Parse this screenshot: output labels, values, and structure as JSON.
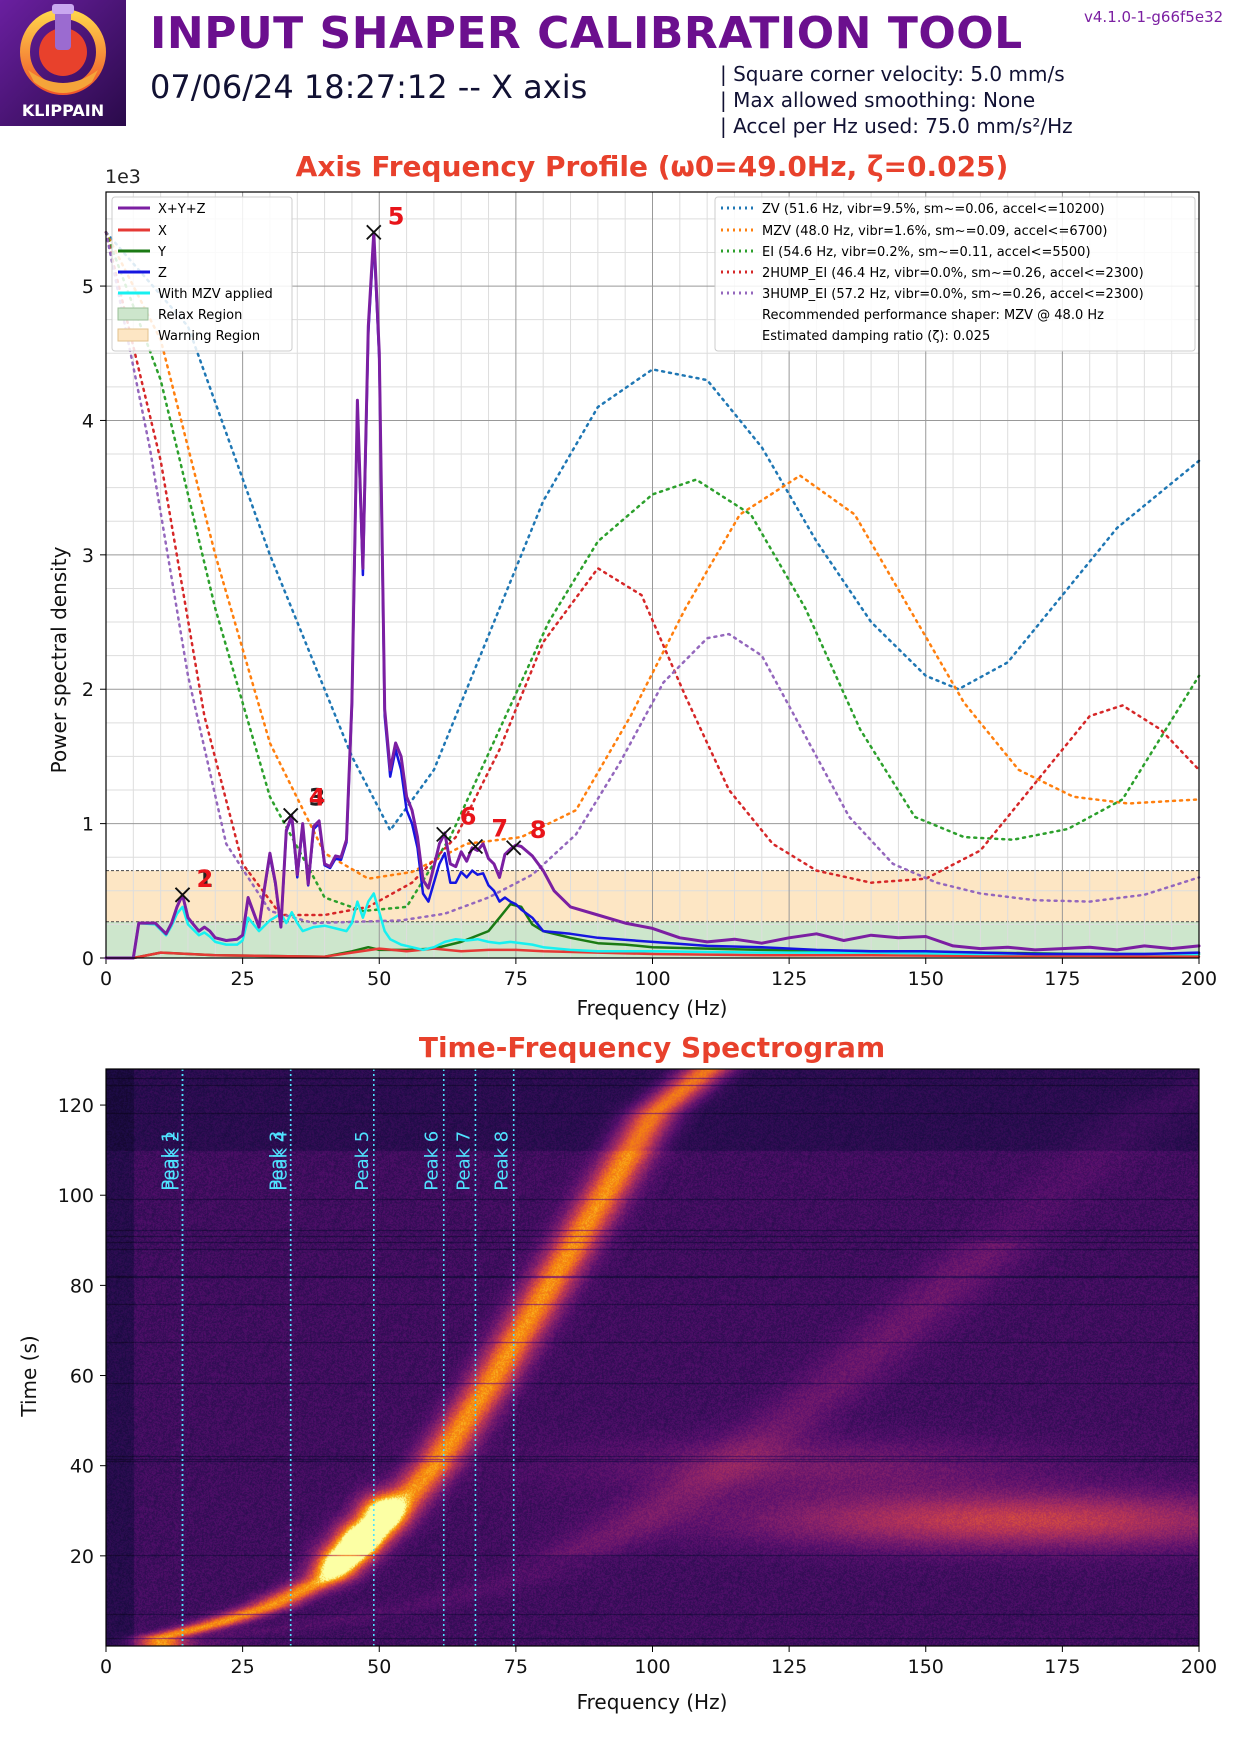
{
  "header": {
    "logo_text": "KLIPPAIN",
    "title": "INPUT SHAPER CALIBRATION TOOL",
    "version": "v4.1.0-1-g66f5e32",
    "subtitle": "07/06/24 18:27:12 -- X axis",
    "info": [
      "| Square corner velocity: 5.0 mm/s",
      "| Max allowed smoothing: None",
      "| Accel per Hz used: 75.0 mm/s²/Hz"
    ]
  },
  "colors": {
    "title_red": "#e8412c",
    "xyz": "#7b1fa2",
    "x": "#e53935",
    "y": "#1b7a14",
    "z": "#1515e0",
    "mzv_applied": "#17f0f0",
    "zv": "#1f77b4",
    "mzv": "#ff7f0e",
    "ei": "#2ca02c",
    "2hump_ei": "#d62728",
    "3hump_ei": "#9467bd",
    "relax_region": "#cde6cc",
    "warning_region": "#fde6c4",
    "peak_label": "#e8141a",
    "peak_label_overlap": "#222222"
  },
  "chart_data": [
    {
      "type": "line",
      "title": "Axis Frequency Profile (ω0=49.0Hz, ζ=0.025)",
      "xlabel": "Frequency (Hz)",
      "ylabel": "Power spectral density",
      "y_multiplier": "1e3",
      "xlim": [
        0,
        200
      ],
      "ylim": [
        0,
        5700
      ],
      "xticks": [
        0,
        25,
        50,
        75,
        100,
        125,
        150,
        175,
        200
      ],
      "yticks": [
        0,
        1000,
        2000,
        3000,
        4000,
        5000
      ],
      "ytick_labels": [
        "0",
        "1",
        "2",
        "3",
        "4",
        "5"
      ],
      "grid": true,
      "regions": [
        {
          "name": "Relax Region",
          "y": [
            0,
            270
          ]
        },
        {
          "name": "Warning Region",
          "y": [
            270,
            650
          ]
        }
      ],
      "legend_left": [
        "X+Y+Z",
        "X",
        "Y",
        "Z",
        "With MZV applied",
        "Relax Region",
        "Warning Region"
      ],
      "legend_right": [
        "ZV (51.6 Hz, vibr=9.5%, sm~=0.06, accel<=10200)",
        "MZV (48.0 Hz, vibr=1.6%, sm~=0.09, accel<=6700)",
        "EI (54.6 Hz, vibr=0.2%, sm~=0.11, accel<=5500)",
        "2HUMP_EI (46.4 Hz, vibr=0.0%, sm~=0.26, accel<=2300)",
        "3HUMP_EI (57.2 Hz, vibr=0.0%, sm~=0.26, accel<=2300)",
        "Recommended performance shaper: MZV @ 48.0 Hz",
        "Estimated damping ratio (ζ): 0.025"
      ],
      "series": [
        {
          "name": "X+Y+Z",
          "x": [
            0,
            5,
            6,
            9,
            11,
            12,
            13,
            14,
            15,
            16,
            17,
            18,
            19,
            20,
            22,
            24,
            25,
            26,
            28,
            29,
            30,
            31,
            32,
            33,
            34,
            35,
            36,
            37,
            38,
            39,
            40,
            41,
            42,
            43,
            44,
            45,
            46,
            47,
            48,
            49,
            50,
            51,
            52,
            53,
            54,
            55,
            56,
            57,
            58,
            59,
            60,
            61,
            62,
            63,
            64,
            65,
            66,
            67,
            68,
            69,
            70,
            71,
            72,
            73,
            74,
            75,
            76,
            78,
            80,
            82,
            85,
            90,
            95,
            100,
            105,
            110,
            115,
            120,
            125,
            130,
            135,
            140,
            145,
            150,
            155,
            160,
            165,
            170,
            175,
            180,
            185,
            190,
            195,
            200
          ],
          "y": [
            0,
            0,
            260,
            260,
            180,
            260,
            380,
            470,
            300,
            250,
            200,
            230,
            200,
            150,
            130,
            140,
            170,
            450,
            230,
            520,
            780,
            560,
            230,
            950,
            1060,
            620,
            1000,
            550,
            980,
            1020,
            700,
            680,
            760,
            750,
            880,
            1900,
            4150,
            2900,
            4700,
            5400,
            4500,
            1850,
            1400,
            1600,
            1500,
            1200,
            1100,
            900,
            580,
            520,
            680,
            850,
            930,
            700,
            680,
            790,
            720,
            820,
            800,
            850,
            740,
            700,
            600,
            770,
            810,
            840,
            830,
            760,
            650,
            500,
            380,
            320,
            260,
            220,
            150,
            120,
            140,
            110,
            150,
            180,
            130,
            170,
            150,
            160,
            90,
            70,
            80,
            60,
            70,
            80,
            60,
            90,
            70,
            90
          ]
        },
        {
          "name": "X",
          "x": [
            0,
            5,
            10,
            20,
            30,
            40,
            45,
            50,
            55,
            60,
            65,
            70,
            75,
            80,
            90,
            100,
            120,
            140,
            160,
            180,
            200
          ],
          "y": [
            0,
            0,
            40,
            20,
            15,
            10,
            40,
            70,
            50,
            70,
            50,
            60,
            60,
            50,
            40,
            30,
            20,
            20,
            15,
            15,
            10
          ]
        },
        {
          "name": "Y",
          "x": [
            0,
            5,
            10,
            20,
            30,
            40,
            45,
            48,
            50,
            55,
            60,
            65,
            70,
            72,
            74,
            76,
            78,
            80,
            85,
            90,
            95,
            100,
            110,
            120,
            140,
            160,
            180,
            200
          ],
          "y": [
            0,
            0,
            40,
            20,
            15,
            10,
            50,
            80,
            60,
            60,
            70,
            120,
            200,
            300,
            400,
            380,
            250,
            200,
            150,
            110,
            100,
            80,
            70,
            60,
            50,
            40,
            30,
            30
          ]
        },
        {
          "name": "Z",
          "x": [
            0,
            5,
            6,
            9,
            11,
            12,
            13,
            14,
            15,
            16,
            17,
            18,
            19,
            20,
            22,
            24,
            25,
            26,
            28,
            29,
            30,
            31,
            32,
            33,
            34,
            35,
            36,
            37,
            38,
            39,
            40,
            41,
            42,
            43,
            44,
            45,
            46,
            47,
            48,
            49,
            50,
            51,
            52,
            53,
            54,
            55,
            56,
            57,
            58,
            59,
            60,
            61,
            62,
            63,
            64,
            65,
            66,
            67,
            68,
            69,
            70,
            71,
            72,
            73,
            74,
            75,
            76,
            78,
            80,
            85,
            90,
            100,
            110,
            120,
            130,
            140,
            150,
            160,
            170,
            180,
            190,
            200
          ],
          "y": [
            0,
            0,
            260,
            260,
            180,
            260,
            380,
            470,
            300,
            250,
            200,
            230,
            200,
            150,
            130,
            140,
            170,
            440,
            230,
            520,
            760,
            550,
            230,
            940,
            1050,
            600,
            980,
            540,
            960,
            1000,
            690,
            670,
            740,
            730,
            860,
            1880,
            4100,
            2850,
            4650,
            5350,
            4450,
            1800,
            1350,
            1550,
            1400,
            1100,
            1000,
            820,
            480,
            420,
            560,
            700,
            780,
            560,
            560,
            640,
            600,
            650,
            620,
            630,
            540,
            500,
            420,
            450,
            420,
            400,
            360,
            300,
            200,
            180,
            150,
            120,
            90,
            80,
            60,
            50,
            50,
            40,
            30,
            30,
            30,
            40
          ]
        },
        {
          "name": "With MZV applied",
          "x": [
            0,
            5,
            6,
            9,
            11,
            12,
            13,
            14,
            15,
            16,
            17,
            18,
            19,
            20,
            22,
            24,
            25,
            26,
            28,
            30,
            32,
            33,
            34,
            35,
            36,
            38,
            40,
            42,
            44,
            45,
            46,
            47,
            48,
            49,
            50,
            51,
            52,
            54,
            56,
            58,
            60,
            62,
            64,
            66,
            68,
            70,
            72,
            74,
            76,
            78,
            80,
            85,
            90,
            100,
            120,
            140,
            160,
            180,
            200
          ],
          "y": [
            0,
            0,
            260,
            250,
            170,
            240,
            330,
            380,
            250,
            210,
            170,
            190,
            160,
            120,
            100,
            100,
            130,
            300,
            200,
            280,
            330,
            260,
            340,
            260,
            200,
            230,
            240,
            220,
            200,
            260,
            420,
            300,
            420,
            480,
            340,
            200,
            140,
            100,
            80,
            60,
            80,
            120,
            140,
            130,
            140,
            120,
            110,
            120,
            110,
            100,
            80,
            60,
            50,
            50,
            40,
            40,
            30,
            30,
            30
          ]
        },
        {
          "name": "ZV (51.6 Hz, vibr=9.5%, sm~=0.06, accel<=10200)",
          "x": [
            0,
            15,
            30,
            45,
            52,
            60,
            70,
            80,
            90,
            100,
            110,
            120,
            130,
            140,
            150,
            156,
            165,
            175,
            185,
            200
          ],
          "y": [
            5400,
            4700,
            3000,
            1500,
            950,
            1400,
            2400,
            3400,
            4100,
            4380,
            4300,
            3800,
            3100,
            2500,
            2100,
            2000,
            2200,
            2700,
            3200,
            3700
          ]
        },
        {
          "name": "MZV (48.0 Hz, vibr=1.6%, sm~=0.09, accel<=6700)",
          "x": [
            0,
            10,
            20,
            30,
            40,
            48,
            56,
            66,
            76,
            86,
            96,
            106,
            116,
            127,
            137,
            147,
            157,
            167,
            177,
            187,
            200
          ],
          "y": [
            5400,
            4600,
            3000,
            1600,
            780,
            590,
            640,
            850,
            900,
            1100,
            1800,
            2600,
            3300,
            3590,
            3300,
            2600,
            1900,
            1400,
            1200,
            1150,
            1180
          ]
        },
        {
          "name": "EI (54.6 Hz, vibr=0.2%, sm~=0.11, accel<=5500)",
          "x": [
            0,
            10,
            20,
            30,
            40,
            47,
            55,
            63,
            72,
            81,
            90,
            100,
            108,
            118,
            128,
            138,
            148,
            157,
            166,
            176,
            186,
            200
          ],
          "y": [
            5400,
            4300,
            2600,
            1200,
            450,
            350,
            380,
            900,
            1700,
            2500,
            3100,
            3450,
            3560,
            3300,
            2600,
            1700,
            1050,
            900,
            880,
            960,
            1180,
            2100
          ]
        },
        {
          "name": "2HUMP_EI (46.4 Hz, vibr=0.0%, sm~=0.26, accel<=2300)",
          "x": [
            0,
            10,
            18,
            25,
            32,
            40,
            48,
            56,
            64,
            72,
            80,
            90,
            98,
            106,
            114,
            122,
            130,
            140,
            150,
            160,
            170,
            180,
            186,
            193,
            200
          ],
          "y": [
            5400,
            3700,
            1800,
            700,
            320,
            320,
            380,
            560,
            900,
            1550,
            2350,
            2900,
            2700,
            1950,
            1250,
            850,
            650,
            560,
            590,
            800,
            1300,
            1800,
            1880,
            1700,
            1400
          ]
        },
        {
          "name": "3HUMP_EI (57.2 Hz, vibr=0.0%, sm~=0.26, accel<=2300)",
          "x": [
            0,
            8,
            15,
            22,
            30,
            38,
            46,
            54,
            62,
            70,
            78,
            86,
            94,
            102,
            110,
            114,
            120,
            128,
            136,
            144,
            152,
            160,
            170,
            180,
            190,
            200
          ],
          "y": [
            5400,
            3800,
            2100,
            850,
            350,
            260,
            270,
            280,
            330,
            450,
            620,
            920,
            1450,
            2050,
            2380,
            2410,
            2250,
            1650,
            1050,
            700,
            560,
            480,
            430,
            420,
            470,
            600
          ]
        }
      ],
      "peaks": [
        {
          "label": "1",
          "x": 14.0,
          "y": 470
        },
        {
          "label": "2",
          "x": 14.0,
          "y": 470
        },
        {
          "label": "3",
          "x": 33.8,
          "y": 1060
        },
        {
          "label": "4",
          "x": 33.8,
          "y": 1060
        },
        {
          "label": "5",
          "x": 49.0,
          "y": 5400
        },
        {
          "label": "6",
          "x": 61.8,
          "y": 920
        },
        {
          "label": "7",
          "x": 67.6,
          "y": 830
        },
        {
          "label": "8",
          "x": 74.6,
          "y": 820
        }
      ]
    },
    {
      "type": "heatmap",
      "title": "Time-Frequency Spectrogram",
      "xlabel": "Frequency (Hz)",
      "ylabel": "Time (s)",
      "xlim": [
        0,
        200
      ],
      "ylim": [
        0,
        128
      ],
      "xticks": [
        0,
        25,
        50,
        75,
        100,
        125,
        150,
        175,
        200
      ],
      "yticks": [
        20,
        40,
        60,
        80,
        100,
        120
      ],
      "colormap": "inferno",
      "peak_lines": [
        {
          "label": "Peak 1",
          "x": 14.0
        },
        {
          "label": "Peak 2",
          "x": 14.0
        },
        {
          "label": "Peak 3",
          "x": 33.8
        },
        {
          "label": "Peak 4",
          "x": 33.8
        },
        {
          "label": "Peak 5",
          "x": 49.0
        },
        {
          "label": "Peak 6",
          "x": 61.8
        },
        {
          "label": "Peak 7",
          "x": 67.6
        },
        {
          "label": "Peak 8",
          "x": 74.6
        }
      ],
      "sweep_ridge": {
        "x": [
          10,
          20,
          30,
          40,
          50,
          60,
          70,
          80,
          90,
          100,
          110
        ],
        "t": [
          2,
          5,
          9,
          15,
          26,
          40,
          58,
          78,
          98,
          118,
          128
        ]
      },
      "hot_spots": [
        {
          "x": 46,
          "t": 24,
          "intensity": 0.95
        },
        {
          "x": 50,
          "t": 30,
          "intensity": 0.9
        },
        {
          "x": 42,
          "t": 19,
          "intensity": 0.7
        },
        {
          "x": 180,
          "t": 28,
          "intensity": 0.45
        },
        {
          "x": 150,
          "t": 28,
          "intensity": 0.4
        },
        {
          "x": 130,
          "t": 40,
          "intensity": 0.35
        }
      ]
    }
  ]
}
